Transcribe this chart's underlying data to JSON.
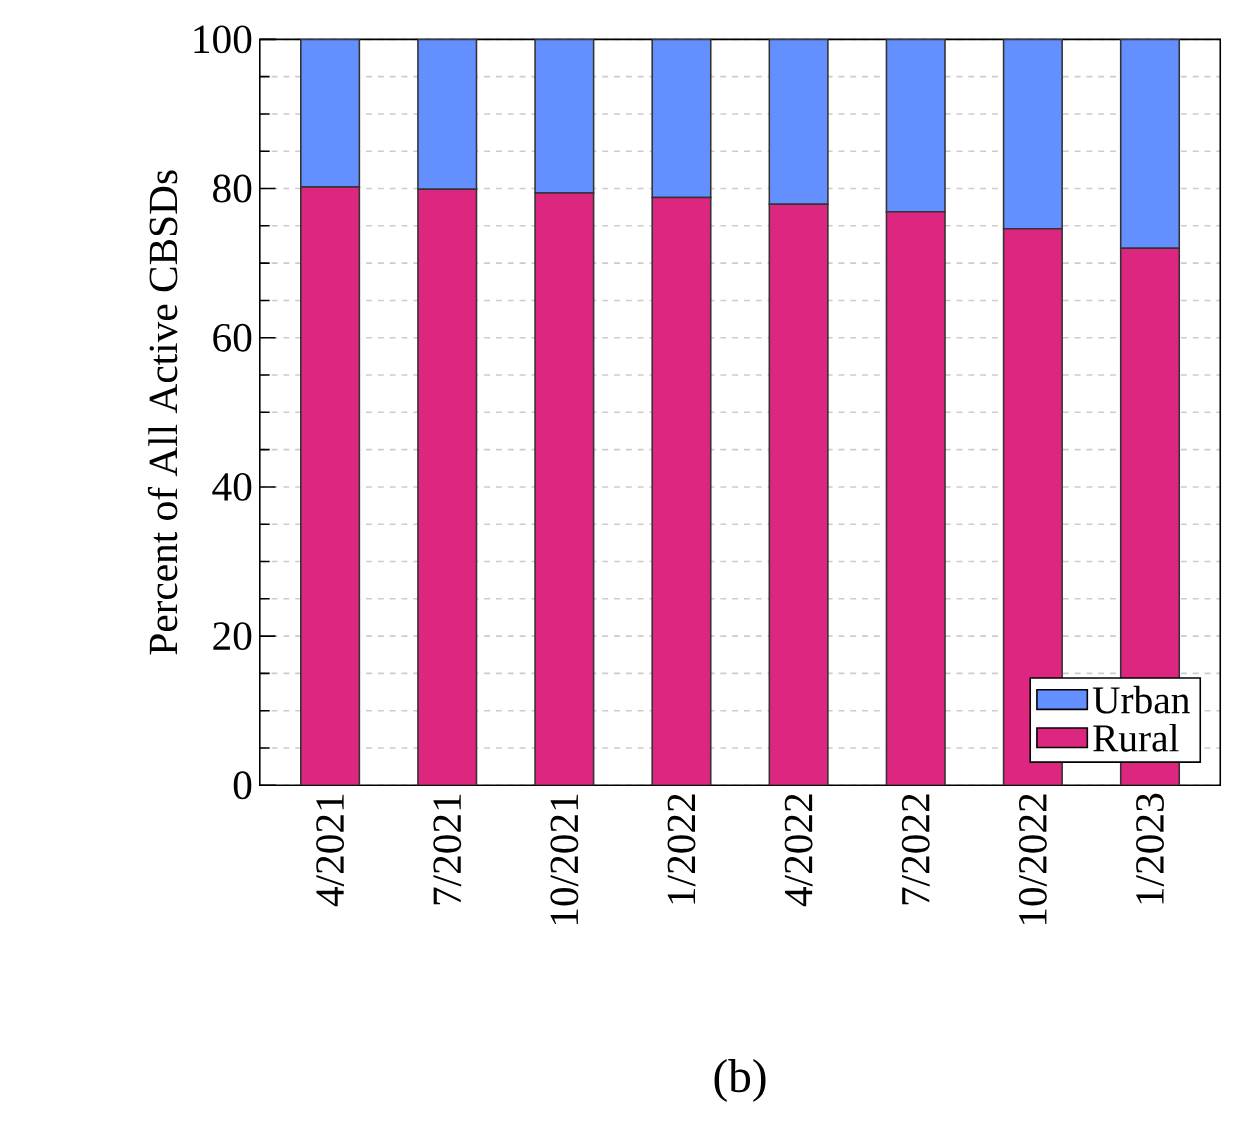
{
  "chart_data": {
    "type": "bar",
    "stacked": true,
    "categories": [
      "4/2021",
      "7/2021",
      "10/2021",
      "1/2022",
      "4/2022",
      "7/2022",
      "10/2022",
      "1/2023"
    ],
    "series": [
      {
        "name": "Rural",
        "color": "#dc267f",
        "values": [
          80.2,
          79.9,
          79.4,
          78.8,
          77.9,
          76.9,
          74.6,
          72.0
        ]
      },
      {
        "name": "Urban",
        "color": "#648fff",
        "values": [
          19.8,
          20.1,
          20.6,
          21.2,
          22.1,
          23.1,
          25.4,
          28.0
        ]
      }
    ],
    "ylabel": "Percent of All Active CBSDs",
    "ylim": [
      0,
      100
    ],
    "yticks": [
      0,
      20,
      40,
      60,
      80,
      100
    ],
    "grid": "y",
    "legend": "bottom right",
    "annotations": [
      "(b)"
    ]
  }
}
